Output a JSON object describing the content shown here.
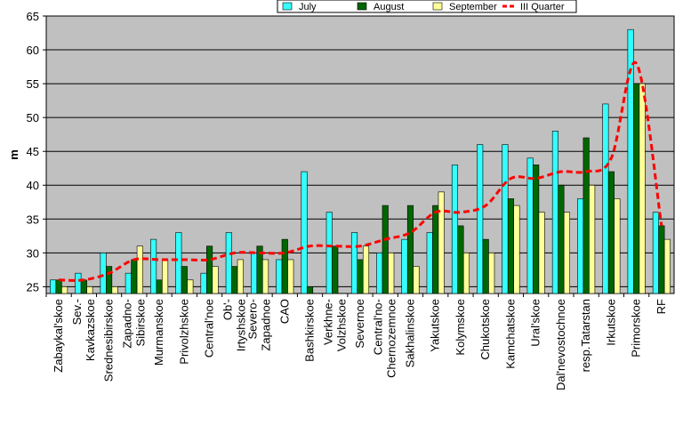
{
  "chart_data": {
    "type": "bar",
    "title": "",
    "xlabel": "",
    "ylabel": "m",
    "ylim": [
      24,
      65
    ],
    "yticks": [
      25,
      30,
      35,
      40,
      45,
      50,
      55,
      60,
      65
    ],
    "grid": true,
    "legend_position": "top-right",
    "categories": [
      "Zabaykal'skoe",
      "Sev.-Kavkazskoe",
      "Srednesibirskoe",
      "Zapadno-Sibirskoe",
      "Murmanskoe",
      "Privolzhskoe",
      "Central'noe",
      "Ob'-Irtyshskoe",
      "Severo-Zapadnoe",
      "CAO",
      "Bashkirskoe",
      "Verkhne-Volzhskoe",
      "Severnoe",
      "Central'no-Chernozemnoe",
      "Sakhalinskoe",
      "Yakutskoe",
      "Kolymskoe",
      "Chukotskoe",
      "Kamchatskoe",
      "Ural'skoe",
      "Dal'nevostochnoe",
      "resp.Tatarstan",
      "Irkutskoe",
      "Primorskoe",
      "RF"
    ],
    "category_label_lines": [
      [
        "Zabaykal'skoe"
      ],
      [
        "Sev.-",
        "Kavkazskoe"
      ],
      [
        "Srednesibirskoe"
      ],
      [
        "Zapadno-",
        "Sibirskoe"
      ],
      [
        "Murmanskoe"
      ],
      [
        "Privolzhskoe"
      ],
      [
        "Central'noe"
      ],
      [
        "Ob'-",
        "Irtyshskoe"
      ],
      [
        "Severo-",
        "Zapadnoe"
      ],
      [
        "CAO"
      ],
      [
        "Bashkirskoe"
      ],
      [
        "Verkhne-",
        "Volzhskoe"
      ],
      [
        "Severnoe"
      ],
      [
        "Central'no-",
        "Chernozemnoe"
      ],
      [
        "Sakhalinskoe"
      ],
      [
        "Yakutskoe"
      ],
      [
        "Kolymskoe"
      ],
      [
        "Chukotskoe"
      ],
      [
        "Kamchatskoe"
      ],
      [
        "Ural'skoe"
      ],
      [
        "Dal'nevostochnoe"
      ],
      [
        "resp.Tatarstan"
      ],
      [
        "Irkutskoe"
      ],
      [
        "Primorskoe"
      ],
      [
        "RF"
      ]
    ],
    "series": [
      {
        "name": "July",
        "kind": "bar",
        "color": "#33FFFF",
        "values": [
          26,
          27,
          30,
          27,
          32,
          33,
          27,
          33,
          30,
          29,
          42,
          36,
          33,
          30,
          32,
          33,
          43,
          46,
          46,
          44,
          48,
          38,
          52,
          63,
          36
        ]
      },
      {
        "name": "August",
        "kind": "bar",
        "color": "#006600",
        "values": [
          26,
          26,
          28,
          29,
          26,
          28,
          31,
          28,
          31,
          32,
          25,
          31,
          29,
          37,
          37,
          37,
          34,
          32,
          38,
          43,
          40,
          47,
          42,
          55,
          34
        ]
      },
      {
        "name": "September",
        "kind": "bar",
        "color": "#FFFF99",
        "values": [
          25,
          25,
          25,
          31,
          29,
          26,
          28,
          29,
          29,
          29,
          24,
          24,
          31,
          30,
          28,
          39,
          30,
          30,
          37,
          36,
          36,
          40,
          38,
          55,
          32
        ]
      },
      {
        "name": "III Quarter",
        "kind": "line",
        "color": "#FF0000",
        "values": [
          26,
          26,
          27,
          29,
          29,
          29,
          29,
          30,
          30,
          30,
          31,
          31,
          31,
          32,
          33,
          36,
          36,
          37,
          41,
          41,
          42,
          42,
          44,
          58,
          34
        ]
      }
    ]
  }
}
